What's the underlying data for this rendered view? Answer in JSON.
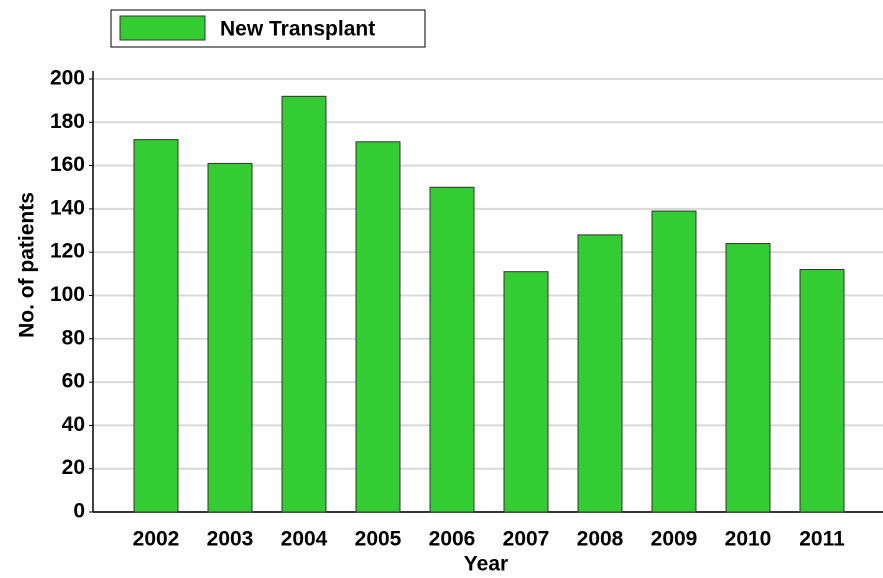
{
  "chart_data": {
    "type": "bar",
    "categories": [
      "2002",
      "2003",
      "2004",
      "2005",
      "2006",
      "2007",
      "2008",
      "2009",
      "2010",
      "2011"
    ],
    "series": [
      {
        "name": "New Transplant",
        "color": "#33cc33",
        "values": [
          172,
          161,
          192,
          171,
          150,
          111,
          128,
          139,
          124,
          112
        ]
      }
    ],
    "x_label": "Year",
    "y_label": "No. of patients",
    "ylim": [
      0,
      200
    ],
    "yticks": [
      0,
      20,
      40,
      60,
      80,
      100,
      120,
      140,
      160,
      180,
      200
    ],
    "grid": true,
    "legend": "top-left"
  }
}
